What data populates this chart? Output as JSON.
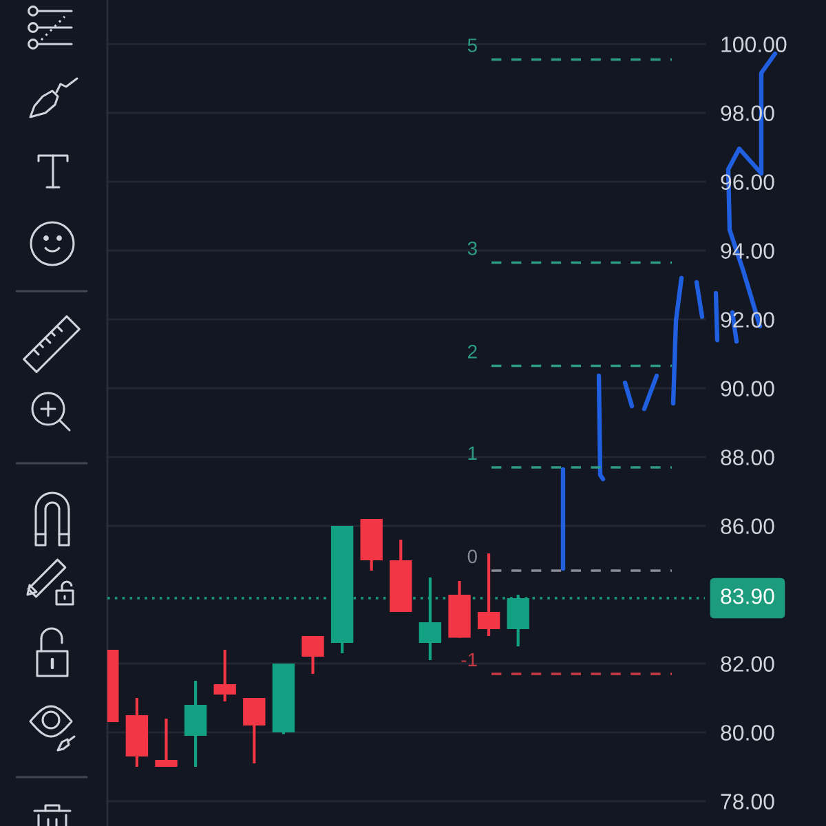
{
  "chart_data": {
    "type": "candlestick",
    "categories": [
      null,
      null,
      null,
      null,
      null,
      null,
      null,
      null,
      null,
      null,
      null,
      null,
      null,
      null,
      null,
      null,
      null,
      null,
      null,
      null,
      null,
      null,
      null,
      null,
      null
    ],
    "ohlc": [
      [
        82.4,
        82.4,
        80.3,
        80.3
      ],
      [
        80.5,
        81.0,
        79.0,
        79.3
      ],
      [
        79.2,
        80.4,
        79.0,
        79.0
      ],
      [
        79.9,
        81.5,
        79.0,
        80.8
      ],
      [
        81.4,
        82.4,
        80.9,
        81.1
      ],
      [
        81.0,
        81.0,
        79.1,
        80.2
      ],
      [
        80.0,
        82.0,
        79.95,
        82.0
      ],
      [
        82.8,
        82.8,
        81.7,
        82.2
      ],
      [
        82.6,
        86.0,
        82.3,
        86.0
      ],
      [
        86.2,
        86.2,
        84.7,
        85.0
      ],
      [
        85.0,
        85.6,
        83.5,
        83.5
      ],
      [
        82.6,
        84.5,
        82.1,
        83.2
      ],
      [
        84.0,
        84.4,
        82.75,
        82.75
      ],
      [
        83.5,
        85.2,
        82.8,
        83.0
      ],
      [
        83.0,
        84.0,
        82.5,
        83.9
      ],
      null,
      null,
      null,
      null,
      null,
      null,
      null,
      null,
      null,
      null
    ],
    "colors": [
      "#f23645",
      "#f23645",
      "#f23645",
      "#12a182",
      "#f23645",
      "#f23645",
      "#12a182",
      "#f23645",
      "#12a182",
      "#f23645",
      "#f23645",
      "#12a182",
      "#f23645",
      "#f23645",
      "#12a182",
      null,
      null,
      null,
      null,
      null,
      null,
      null,
      null,
      null,
      null
    ],
    "ylim": [
      77.28,
      101.28
    ],
    "yticks": [
      {
        "value": 78,
        "label": "78.00"
      },
      {
        "value": 80,
        "label": "80.00"
      },
      {
        "value": 82,
        "label": "82.00"
      },
      {
        "value": 86,
        "label": "86.00"
      },
      {
        "value": 88,
        "label": "88.00"
      },
      {
        "value": 90,
        "label": "90.00"
      },
      {
        "value": 92,
        "label": "92.00"
      },
      {
        "value": 94,
        "label": "94.00"
      },
      {
        "value": 96,
        "label": "96.00"
      },
      {
        "value": 98,
        "label": "98.00"
      },
      {
        "value": 100,
        "label": "100.00"
      }
    ],
    "grid": "y",
    "tick_labels": "y",
    "ref_lines": [
      {
        "axis": "y",
        "value": 99.55,
        "color": "#2e9b83",
        "line_style": "dashed"
      },
      {
        "axis": "y",
        "value": 93.65,
        "color": "#2e9b83",
        "line_style": "dashed"
      },
      {
        "axis": "y",
        "value": 90.65,
        "color": "#2e9b83",
        "line_style": "dashed"
      },
      {
        "axis": "y",
        "value": 87.7,
        "color": "#2e9b83",
        "line_style": "dashed"
      },
      {
        "axis": "y",
        "value": 84.7,
        "color": "#8a8d96",
        "line_style": "dashed"
      },
      {
        "axis": "y",
        "value": 81.7,
        "color": "#c93a45",
        "line_style": "dashed"
      },
      {
        "axis": "y",
        "value": 83.9,
        "label": "83.90",
        "color": "#1d9c7d",
        "line_style": "dotted"
      }
    ],
    "annotations": [
      "5",
      "3",
      "2",
      "1",
      "0",
      "-1"
    ]
  }
}
